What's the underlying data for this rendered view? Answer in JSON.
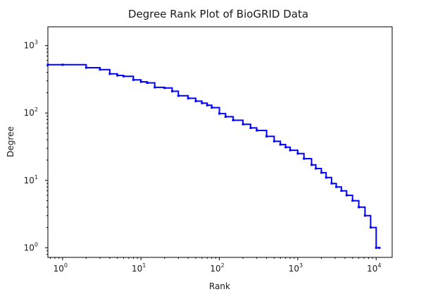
{
  "chart_data": {
    "type": "line",
    "title": "Degree Rank Plot of BioGRID Data",
    "xlabel": "Rank",
    "ylabel": "Degree",
    "xscale": "log",
    "yscale": "log",
    "xlim": [
      0.65,
      16000
    ],
    "ylim": [
      0.72,
      1900
    ],
    "grid": false,
    "color": "#0000ff",
    "tick_base": "10",
    "x_ticks": [
      {
        "exp": "0",
        "value": 1
      },
      {
        "exp": "1",
        "value": 10
      },
      {
        "exp": "2",
        "value": 100
      },
      {
        "exp": "3",
        "value": 1000
      },
      {
        "exp": "4",
        "value": 10000
      }
    ],
    "y_ticks": [
      {
        "exp": "0",
        "value": 1
      },
      {
        "exp": "1",
        "value": 10
      },
      {
        "exp": "2",
        "value": 100
      },
      {
        "exp": "3",
        "value": 1000
      }
    ],
    "series": [
      {
        "x": [
          0.65,
          1,
          2,
          3,
          4,
          5,
          6,
          8,
          10,
          12,
          15,
          20,
          25,
          30,
          40,
          50,
          60,
          70,
          80,
          100,
          120,
          150,
          200,
          250,
          300,
          400,
          500,
          600,
          700,
          800,
          1000,
          1200,
          1500,
          1700,
          2000,
          2300,
          2700,
          3100,
          3600,
          4200,
          5000,
          6000,
          7200,
          8500,
          10000,
          11000
        ],
        "y": [
          520,
          520,
          470,
          440,
          380,
          360,
          350,
          310,
          290,
          280,
          240,
          235,
          210,
          180,
          165,
          150,
          140,
          130,
          120,
          98,
          88,
          78,
          68,
          60,
          55,
          45,
          38,
          34,
          31,
          28,
          25,
          21,
          17,
          15,
          13,
          11,
          9,
          8,
          7,
          6,
          5,
          4,
          3,
          2,
          1,
          1
        ]
      }
    ]
  }
}
